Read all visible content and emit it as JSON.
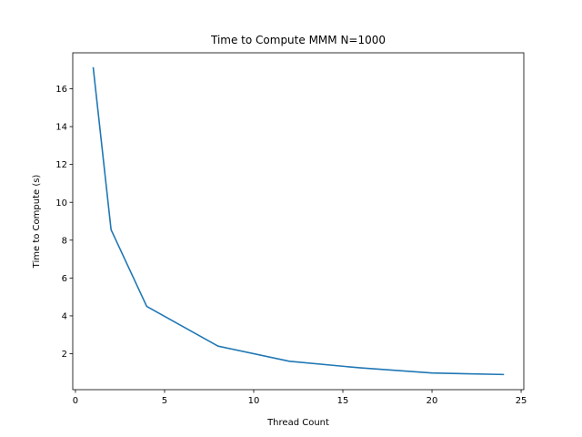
{
  "chart_data": {
    "type": "line",
    "title": "Time to Compute MMM N=1000",
    "xlabel": "Thread Count",
    "ylabel": "Time to Compute (s)",
    "xlim": [
      -0.15,
      25.15
    ],
    "ylim": [
      0.1,
      17.9
    ],
    "xticks": [
      0,
      5,
      10,
      15,
      20,
      25
    ],
    "yticks": [
      2,
      4,
      6,
      8,
      10,
      12,
      14,
      16
    ],
    "grid": false,
    "series": [
      {
        "color": "#1f77b4",
        "x": [
          1,
          2,
          4,
          8,
          12,
          16,
          20,
          24
        ],
        "y": [
          17.1,
          8.55,
          4.5,
          2.4,
          1.6,
          1.25,
          0.98,
          0.9
        ]
      }
    ]
  }
}
